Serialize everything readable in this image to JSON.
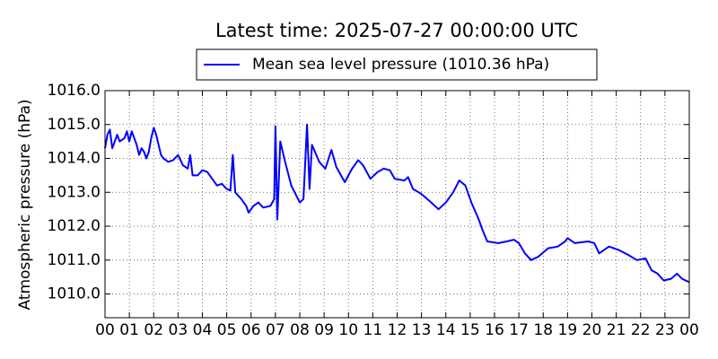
{
  "chart_data": {
    "type": "line",
    "title": "Latest time: 2025-07-27 00:00:00 UTC",
    "y_label": "Atmospheric pressure (hPa)",
    "grid": true,
    "legend": "top",
    "xlim": [
      0,
      24
    ],
    "ylim": [
      1009.3,
      1016
    ],
    "xticks": [
      {
        "value": 0,
        "label": "00"
      },
      {
        "value": 1,
        "label": "01"
      },
      {
        "value": 2,
        "label": "02"
      },
      {
        "value": 3,
        "label": "03"
      },
      {
        "value": 4,
        "label": "04"
      },
      {
        "value": 5,
        "label": "05"
      },
      {
        "value": 6,
        "label": "06"
      },
      {
        "value": 7,
        "label": "07"
      },
      {
        "value": 8,
        "label": "08"
      },
      {
        "value": 9,
        "label": "09"
      },
      {
        "value": 10,
        "label": "10"
      },
      {
        "value": 11,
        "label": "11"
      },
      {
        "value": 12,
        "label": "12"
      },
      {
        "value": 13,
        "label": "13"
      },
      {
        "value": 14,
        "label": "14"
      },
      {
        "value": 15,
        "label": "15"
      },
      {
        "value": 16,
        "label": "16"
      },
      {
        "value": 17,
        "label": "17"
      },
      {
        "value": 18,
        "label": "18"
      },
      {
        "value": 19,
        "label": "19"
      },
      {
        "value": 20,
        "label": "20"
      },
      {
        "value": 21,
        "label": "21"
      },
      {
        "value": 22,
        "label": "22"
      },
      {
        "value": 23,
        "label": "23"
      },
      {
        "value": 24,
        "label": "00"
      }
    ],
    "yticks": [
      {
        "value": 1010,
        "label": "1010.0"
      },
      {
        "value": 1011,
        "label": "1011.0"
      },
      {
        "value": 1012,
        "label": "1012.0"
      },
      {
        "value": 1013,
        "label": "1013.0"
      },
      {
        "value": 1014,
        "label": "1014.0"
      },
      {
        "value": 1015,
        "label": "1015.0"
      },
      {
        "value": 1016,
        "label": "1016.0"
      }
    ],
    "x": [
      0,
      0.1,
      0.2,
      0.3,
      0.5,
      0.6,
      0.8,
      0.9,
      1.0,
      1.1,
      1.3,
      1.4,
      1.5,
      1.6,
      1.7,
      1.8,
      1.9,
      2.0,
      2.1,
      2.2,
      2.3,
      2.4,
      2.6,
      2.8,
      3.0,
      3.2,
      3.4,
      3.5,
      3.6,
      3.8,
      4.0,
      4.2,
      4.4,
      4.6,
      4.8,
      5.0,
      5.15,
      5.25,
      5.35,
      5.6,
      5.8,
      5.9,
      6.1,
      6.3,
      6.5,
      6.8,
      6.95,
      7.0,
      7.08,
      7.2,
      7.4,
      7.65,
      8.0,
      8.15,
      8.3,
      8.4,
      8.5,
      8.8,
      9.05,
      9.3,
      9.5,
      9.85,
      10.15,
      10.4,
      10.6,
      10.9,
      11.2,
      11.45,
      11.7,
      11.9,
      12.3,
      12.45,
      12.65,
      13.0,
      13.4,
      13.7,
      14.0,
      14.3,
      14.55,
      14.8,
      15.05,
      15.35,
      15.5,
      15.7,
      16.15,
      16.5,
      16.8,
      17.0,
      17.25,
      17.5,
      17.8,
      18.2,
      18.6,
      18.9,
      19.0,
      19.3,
      19.85,
      20.1,
      20.3,
      20.7,
      21.1,
      21.5,
      21.85,
      22.2,
      22.45,
      22.7,
      22.95,
      23.25,
      23.5,
      23.7,
      24
    ],
    "series": [
      {
        "name": "Mean sea level pressure (1010.36 hPa)",
        "color": "#0000ff",
        "values": [
          1014.3,
          1014.7,
          1014.85,
          1014.3,
          1014.7,
          1014.5,
          1014.6,
          1014.8,
          1014.5,
          1014.8,
          1014.4,
          1014.1,
          1014.3,
          1014.2,
          1014.0,
          1014.2,
          1014.6,
          1014.9,
          1014.7,
          1014.4,
          1014.1,
          1014.0,
          1013.9,
          1013.95,
          1014.1,
          1013.8,
          1013.7,
          1014.1,
          1013.5,
          1013.5,
          1013.65,
          1013.6,
          1013.4,
          1013.2,
          1013.25,
          1013.1,
          1013.05,
          1014.1,
          1013.0,
          1012.8,
          1012.6,
          1012.4,
          1012.6,
          1012.7,
          1012.55,
          1012.6,
          1012.8,
          1014.95,
          1012.2,
          1014.5,
          1013.9,
          1013.2,
          1012.7,
          1012.8,
          1015.0,
          1013.1,
          1014.4,
          1013.9,
          1013.7,
          1014.25,
          1013.75,
          1013.3,
          1013.7,
          1013.95,
          1013.8,
          1013.4,
          1013.6,
          1013.7,
          1013.65,
          1013.4,
          1013.35,
          1013.45,
          1013.1,
          1012.95,
          1012.7,
          1012.5,
          1012.7,
          1013.0,
          1013.35,
          1013.2,
          1012.7,
          1012.2,
          1011.9,
          1011.55,
          1011.5,
          1011.55,
          1011.6,
          1011.5,
          1011.2,
          1011.0,
          1011.1,
          1011.35,
          1011.4,
          1011.55,
          1011.65,
          1011.5,
          1011.55,
          1011.5,
          1011.2,
          1011.4,
          1011.3,
          1011.15,
          1011.0,
          1011.05,
          1010.7,
          1010.6,
          1010.4,
          1010.45,
          1010.6,
          1010.45,
          1010.35
        ]
      }
    ]
  }
}
